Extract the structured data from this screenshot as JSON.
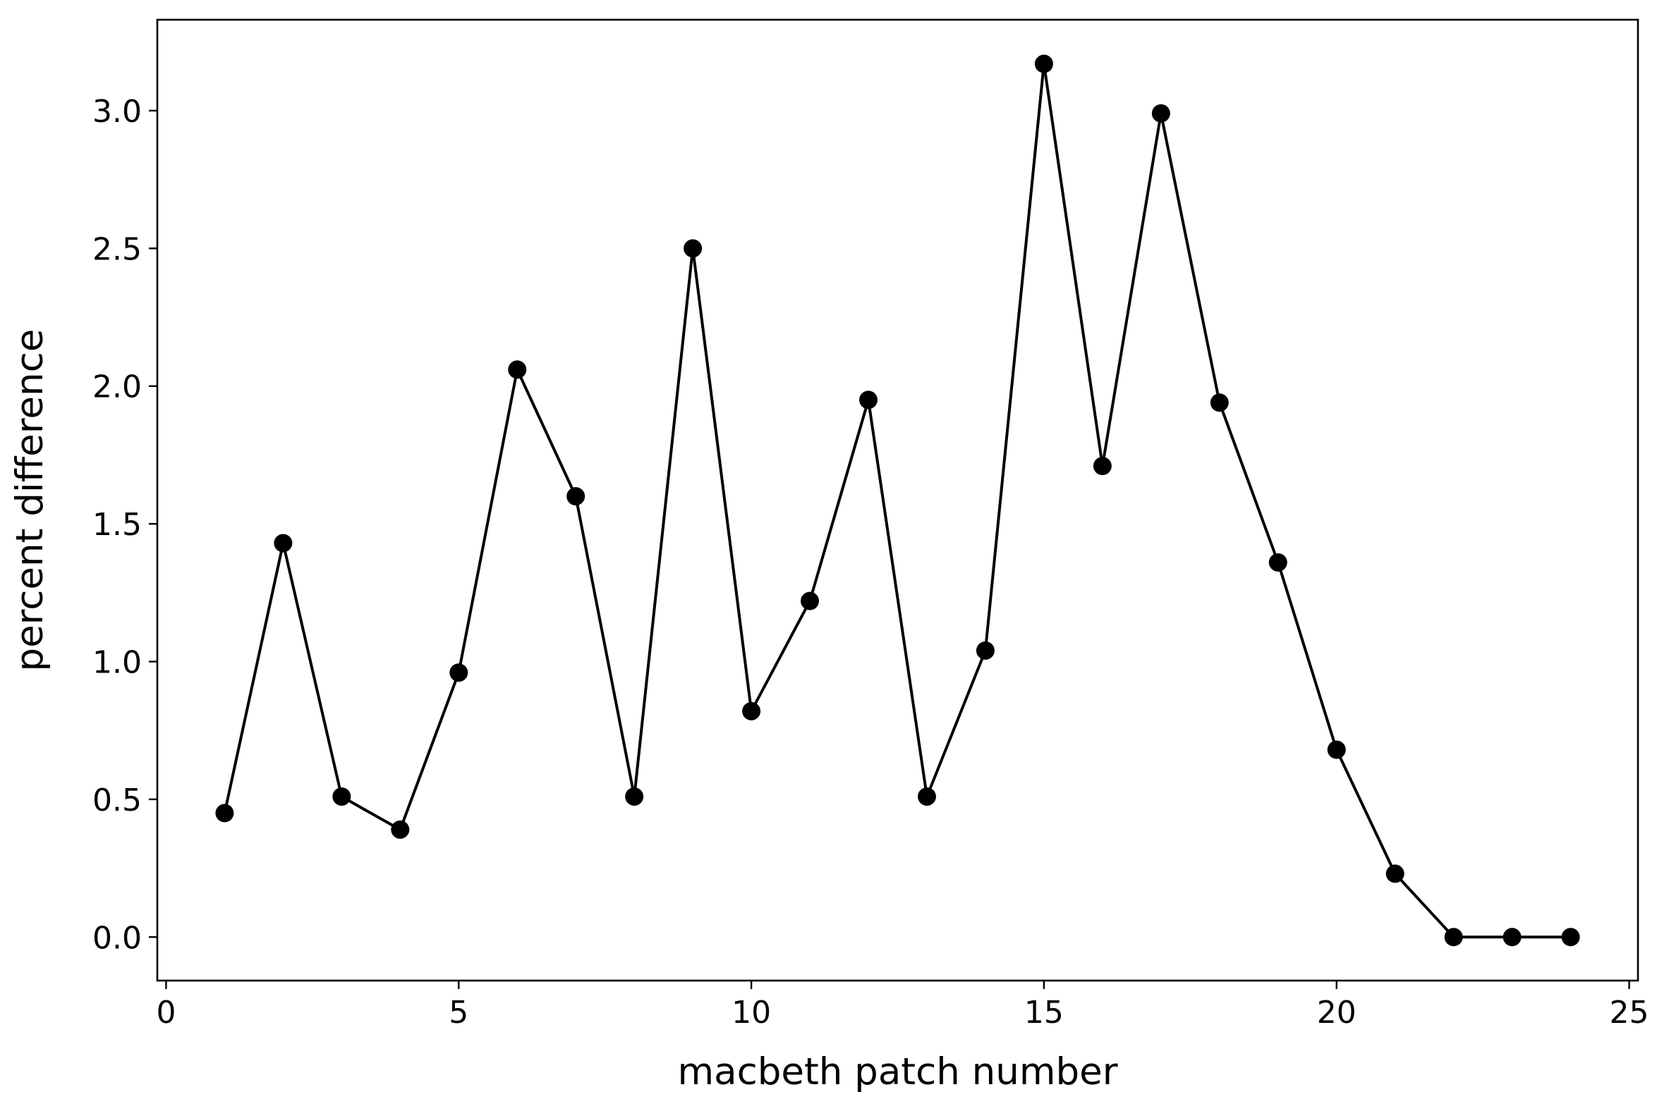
{
  "chart_data": {
    "type": "line",
    "title": "",
    "xlabel": "macbeth patch number",
    "ylabel": "percent difference",
    "xlim": [
      -0.15,
      25.15
    ],
    "ylim": [
      -0.158,
      3.33
    ],
    "xticks": [
      0,
      5,
      10,
      15,
      20,
      25
    ],
    "xtick_labels": [
      "0",
      "5",
      "10",
      "15",
      "20",
      "25"
    ],
    "yticks": [
      0.0,
      0.5,
      1.0,
      1.5,
      2.0,
      2.5,
      3.0
    ],
    "ytick_labels": [
      "0.0",
      "0.5",
      "1.0",
      "1.5",
      "2.0",
      "2.5",
      "3.0"
    ],
    "grid": false,
    "legend": "none",
    "series": [
      {
        "color": "#000000",
        "marker": "circle",
        "x": [
          1,
          2,
          3,
          4,
          5,
          6,
          7,
          8,
          9,
          10,
          11,
          12,
          13,
          14,
          15,
          16,
          17,
          18,
          19,
          20,
          21,
          22,
          23,
          24
        ],
        "values": [
          0.45,
          1.43,
          0.51,
          0.39,
          0.96,
          2.06,
          1.6,
          0.51,
          2.5,
          0.82,
          1.22,
          1.95,
          0.51,
          1.04,
          3.17,
          1.71,
          2.99,
          1.94,
          1.36,
          0.68,
          0.23,
          0.0,
          0.0,
          0.0
        ]
      }
    ]
  }
}
